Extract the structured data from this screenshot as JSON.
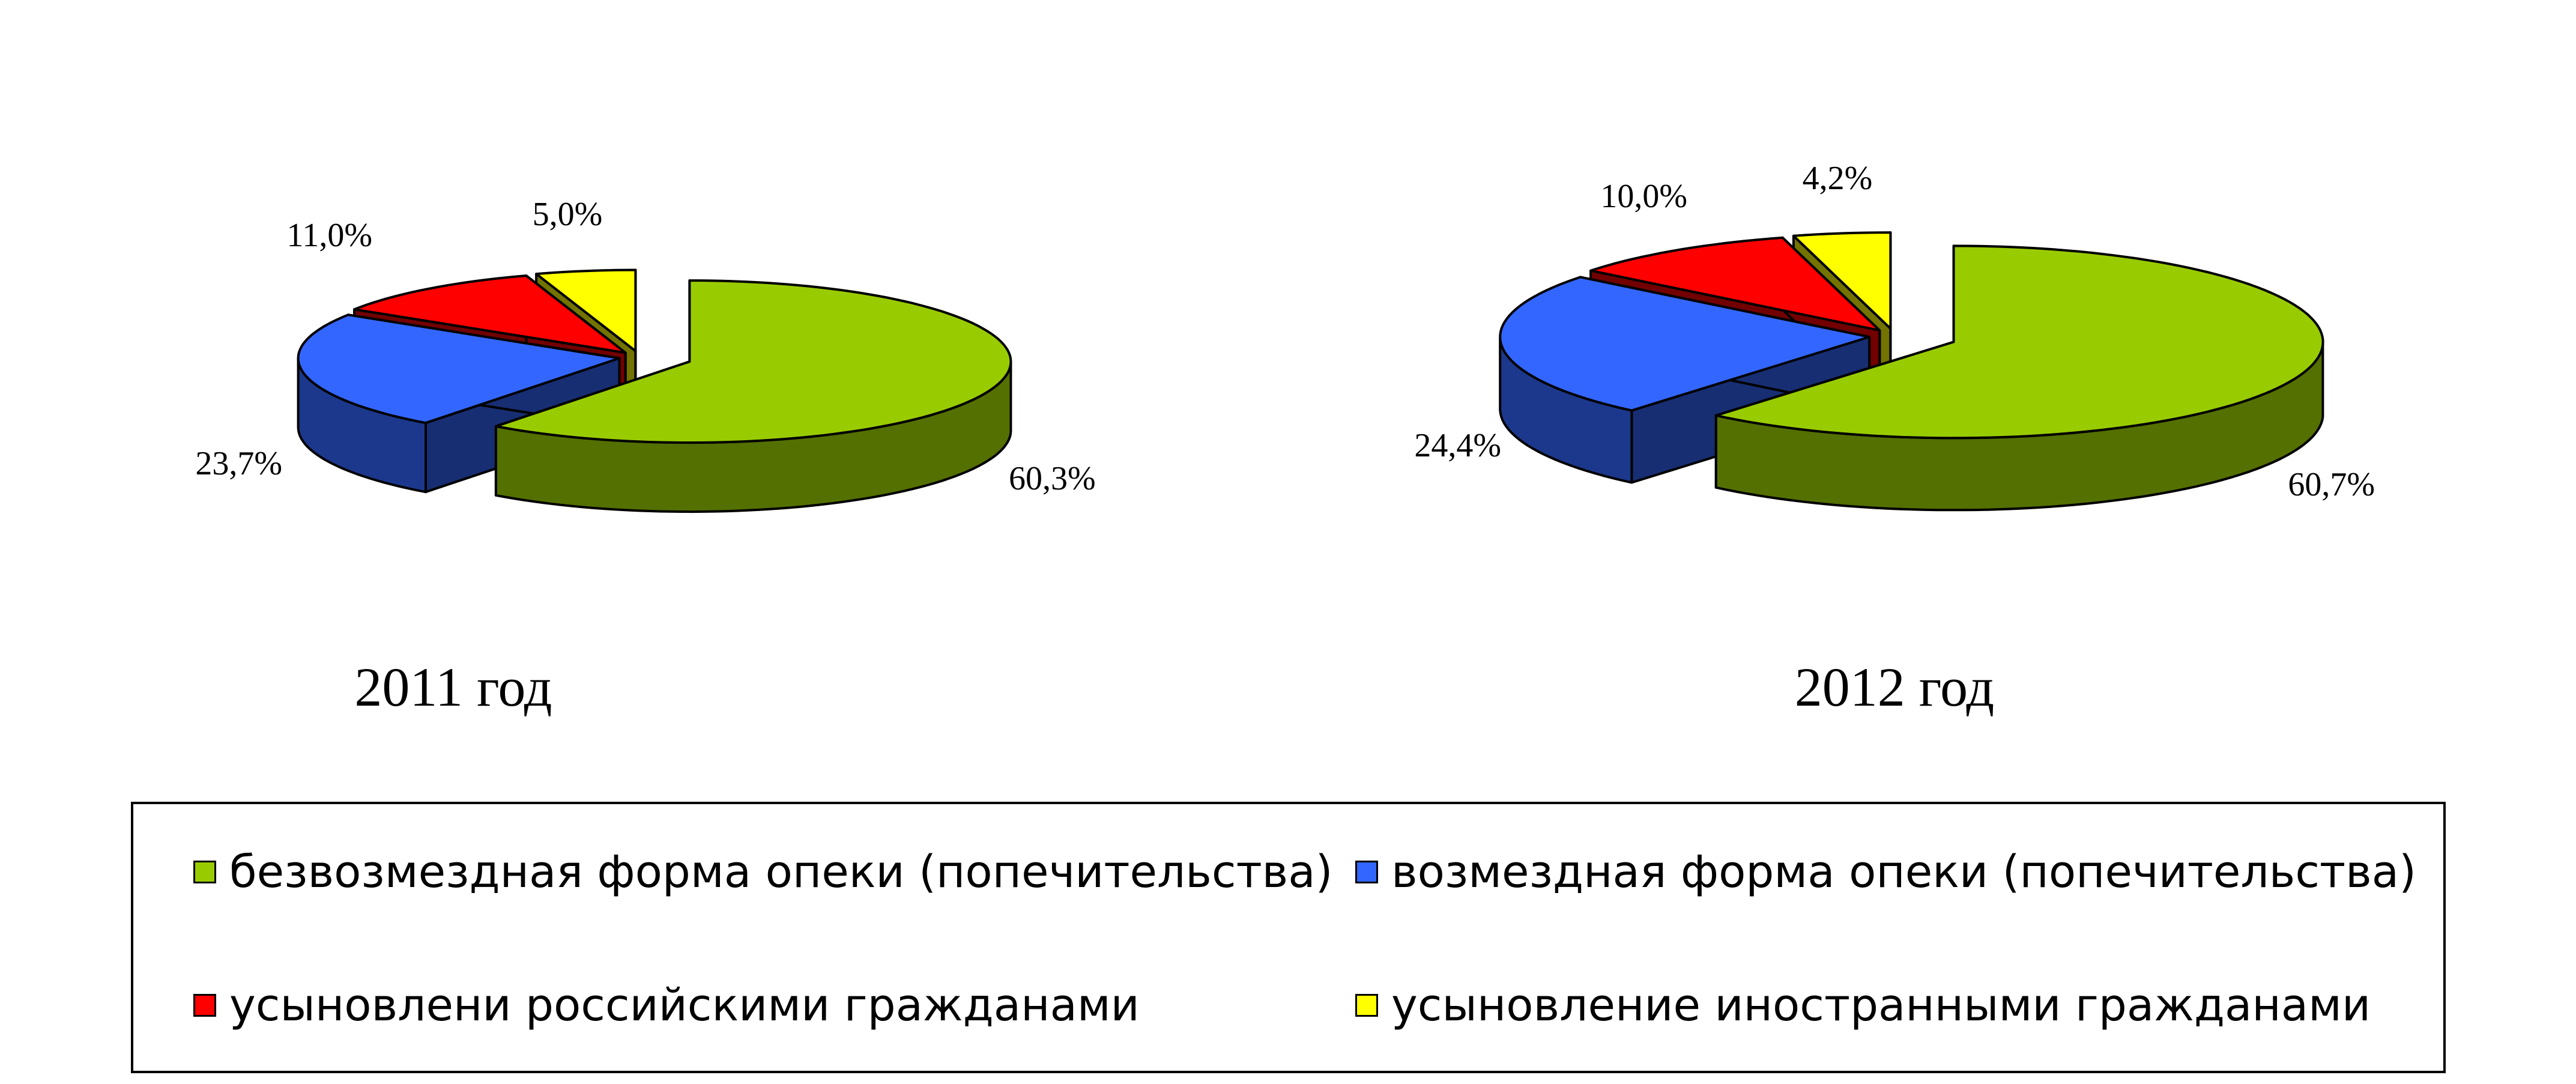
{
  "chart_data": [
    {
      "type": "pie",
      "title": "2011 год",
      "categories": [
        "безвозмездная форма опеки (попечительства)",
        "возмездная форма опеки (попечительства)",
        "усыновлени российскими гражданами",
        "усыновление иностранными гражданами"
      ],
      "values": [
        60.3,
        23.7,
        11.0,
        5.0
      ],
      "data_labels": [
        "60,3%",
        "23,7%",
        "11,0%",
        "5,0%"
      ],
      "colors": [
        "#99cc00",
        "#3366ff",
        "#ff0000",
        "#ffff00"
      ],
      "style": "3d-exploded"
    },
    {
      "type": "pie",
      "title": "2012 год",
      "categories": [
        "безвозмездная форма опеки (попечительства)",
        "возмездная форма опеки (попечительства)",
        "усыновлени российскими гражданами",
        "усыновление иностранными гражданами"
      ],
      "values": [
        60.7,
        24.4,
        10.0,
        4.2
      ],
      "data_labels": [
        "60,7%",
        "24,4%",
        "10,0%",
        "4,2%"
      ],
      "colors": [
        "#99cc00",
        "#3366ff",
        "#ff0000",
        "#ffff00"
      ],
      "style": "3d-exploded"
    }
  ],
  "legend": {
    "placement": "bottom",
    "items": [
      {
        "label": "безвозмездная форма опеки (попечительства)",
        "color": "#99cc00"
      },
      {
        "label": "возмездная форма опеки (попечительства)",
        "color": "#3366ff"
      },
      {
        "label": "усыновлени российскими гражданами",
        "color": "#ff0000"
      },
      {
        "label": "усыновление иностранными гражданами",
        "color": "#ffff00"
      }
    ]
  }
}
